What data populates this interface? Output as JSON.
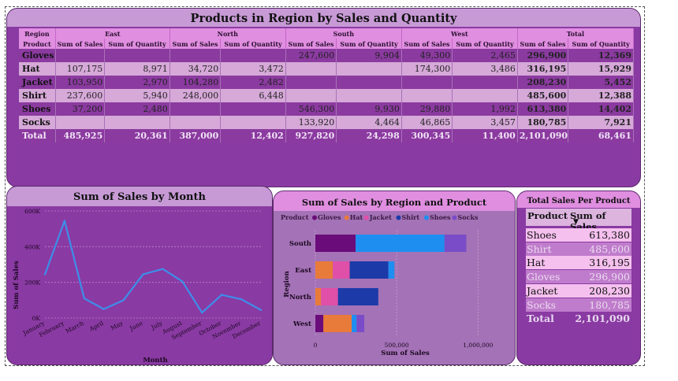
{
  "pivot": {
    "title": "Products in Region by Sales and Quantity",
    "corner_region": "Region",
    "corner_product": "Product",
    "regions": [
      "East",
      "North",
      "South",
      "West",
      "Total"
    ],
    "sub_sales": "Sum of Sales",
    "sub_qty": "Sum of Quantity",
    "rows": [
      {
        "product": "Gloves",
        "cells": [
          "",
          "",
          "",
          "",
          "247,600",
          "9,904",
          "49,300",
          "2,465",
          "296,900",
          "12,369"
        ]
      },
      {
        "product": "Hat",
        "cells": [
          "107,175",
          "8,971",
          "34,720",
          "3,472",
          "",
          "",
          "174,300",
          "3,486",
          "316,195",
          "15,929"
        ]
      },
      {
        "product": "Jacket",
        "cells": [
          "103,950",
          "2,970",
          "104,280",
          "2,482",
          "",
          "",
          "",
          "",
          "208,230",
          "5,452"
        ]
      },
      {
        "product": "Shirt",
        "cells": [
          "237,600",
          "5,940",
          "248,000",
          "6,448",
          "",
          "",
          "",
          "",
          "485,600",
          "12,388"
        ]
      },
      {
        "product": "Shoes",
        "cells": [
          "37,200",
          "2,480",
          "",
          "",
          "546,300",
          "9,930",
          "29,880",
          "1,992",
          "613,380",
          "14,402"
        ]
      },
      {
        "product": "Socks",
        "cells": [
          "",
          "",
          "",
          "",
          "133,920",
          "4,464",
          "46,865",
          "3,457",
          "180,785",
          "7,921"
        ]
      },
      {
        "product": "Total",
        "cells": [
          "485,925",
          "20,361",
          "387,000",
          "12,402",
          "927,820",
          "24,298",
          "300,345",
          "11,400",
          "2,101,090",
          "68,461"
        ]
      }
    ]
  },
  "chart_data": [
    {
      "type": "line",
      "title": "Sum of Sales by Month",
      "xlabel": "Month",
      "ylabel": "Sum of Sales",
      "categories": [
        "January",
        "February",
        "March",
        "April",
        "May",
        "June",
        "July",
        "August",
        "September",
        "October",
        "November",
        "December"
      ],
      "values": [
        245000,
        545000,
        110000,
        50000,
        100000,
        245000,
        275000,
        205000,
        30000,
        130000,
        105000,
        45000
      ],
      "ylim": [
        0,
        600000
      ],
      "yticks": [
        "0K",
        "200K",
        "400K",
        "600K"
      ],
      "color": "#3d8eea",
      "grid": true
    },
    {
      "type": "bar",
      "orientation": "horizontal",
      "stacked": true,
      "title": "Sum of Sales by Region and Product",
      "xlabel": "Sum of Sales",
      "ylabel": "Region",
      "legend_title": "Product",
      "legend_position": "top",
      "categories": [
        "South",
        "East",
        "North",
        "West"
      ],
      "series": [
        {
          "name": "Gloves",
          "color": "#6a0c7a",
          "values": [
            247600,
            0,
            0,
            49300
          ]
        },
        {
          "name": "Hat",
          "color": "#e87a3a",
          "values": [
            0,
            107175,
            34720,
            174300
          ]
        },
        {
          "name": "Jacket",
          "color": "#e04fa8",
          "values": [
            0,
            103950,
            104280,
            0
          ]
        },
        {
          "name": "Shirt",
          "color": "#1c3aa8",
          "values": [
            0,
            237600,
            248000,
            0
          ]
        },
        {
          "name": "Shoes",
          "color": "#1e8ff0",
          "values": [
            546300,
            37200,
            0,
            29880
          ]
        },
        {
          "name": "Socks",
          "color": "#7a4cc8",
          "values": [
            133920,
            0,
            0,
            46865
          ]
        }
      ],
      "xlim": [
        0,
        1100000
      ],
      "xticks": [
        "0",
        "500,000",
        "1,000,000"
      ]
    },
    {
      "type": "table",
      "title": "Total Sales Per Product",
      "columns": [
        "Product",
        "Sum of Sales"
      ],
      "rows": [
        {
          "product": "Shoes",
          "sales": "613,380"
        },
        {
          "product": "Shirt",
          "sales": "485,600"
        },
        {
          "product": "Hat",
          "sales": "316,195"
        },
        {
          "product": "Gloves",
          "sales": "296,900"
        },
        {
          "product": "Jacket",
          "sales": "208,230"
        },
        {
          "product": "Socks",
          "sales": "180,785"
        }
      ],
      "total_label": "Total",
      "total_value": "2,101,090",
      "sort_indicator": "chevron-down-icon"
    }
  ]
}
